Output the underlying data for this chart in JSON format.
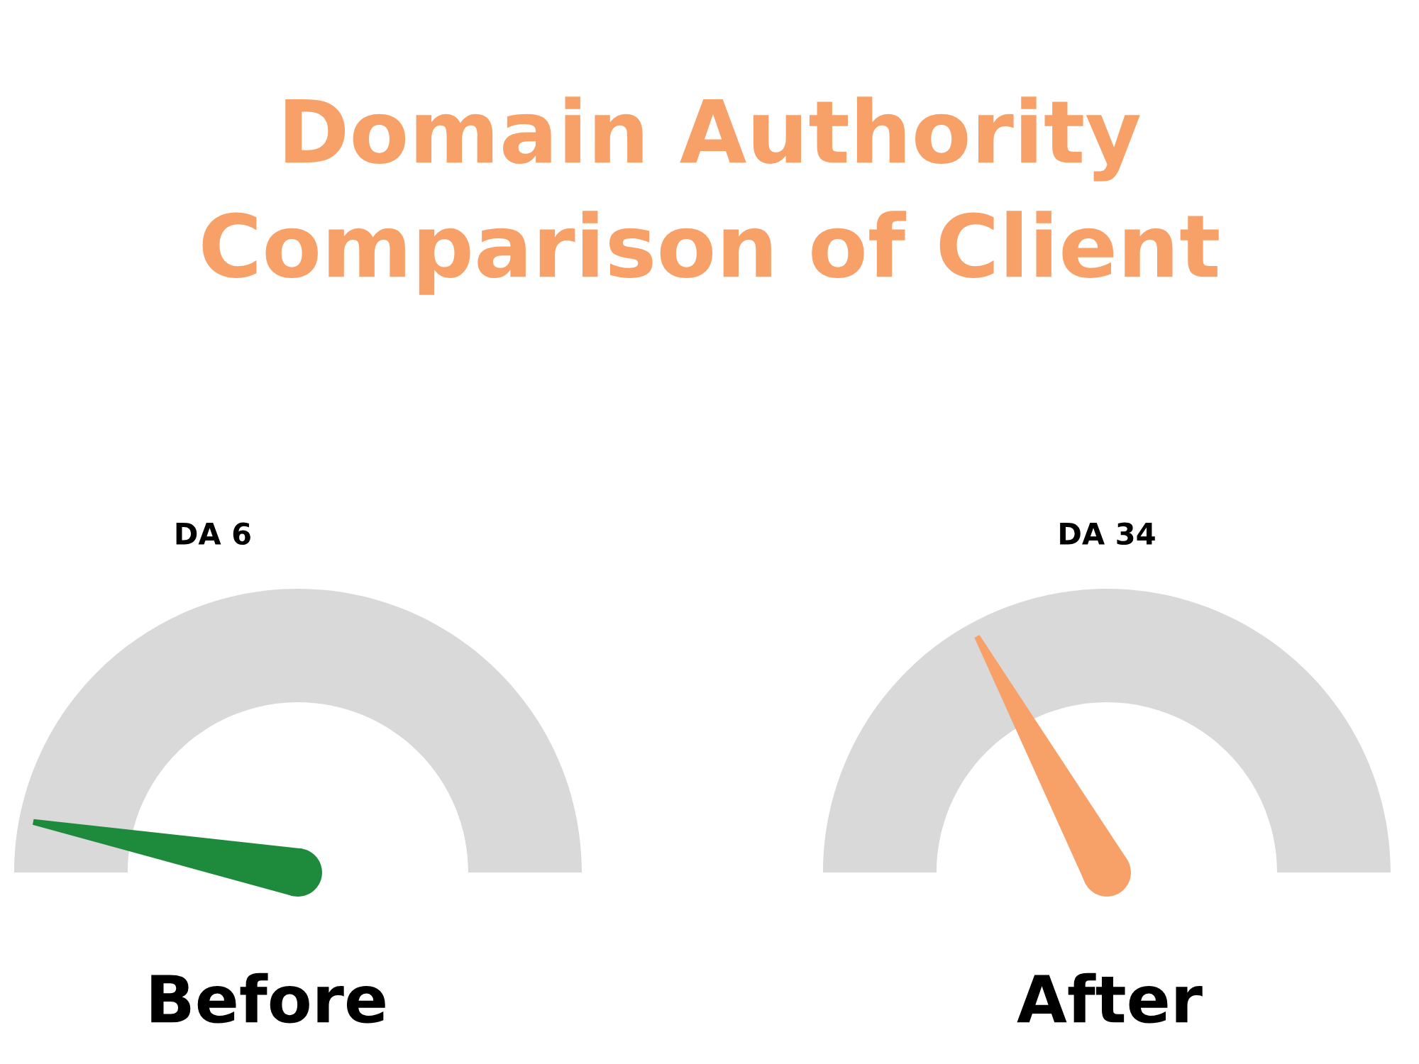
{
  "chart_data": {
    "type": "other",
    "title": "Domain Authority\nComparison of Client",
    "categories": [
      "Before",
      "After"
    ],
    "values": [
      6,
      34
    ],
    "value_labels": [
      "DA 6",
      "DA 34"
    ],
    "colors": [
      "#1e8a3c",
      "#f7a068"
    ]
  }
}
